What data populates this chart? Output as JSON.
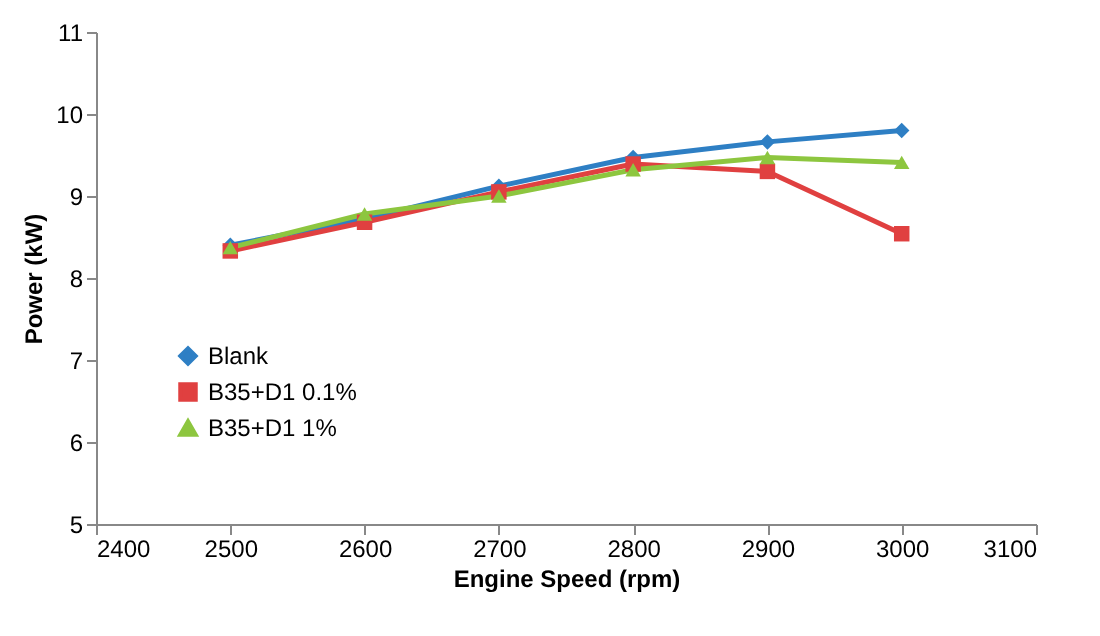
{
  "chart_data": {
    "type": "line",
    "xlabel": "Engine Speed (rpm)",
    "ylabel": "Power (kW)",
    "x": [
      2500,
      2600,
      2700,
      2800,
      2900,
      3000
    ],
    "xlim": [
      2400,
      3100
    ],
    "xticks": [
      2400,
      2500,
      2600,
      2700,
      2800,
      2900,
      3000,
      3100
    ],
    "ylim": [
      5,
      11
    ],
    "yticks": [
      5,
      6,
      7,
      8,
      9,
      10,
      11
    ],
    "legend": "bottom left",
    "grid": false,
    "series": [
      {
        "name": "Blank",
        "color": "#2e7fc4",
        "marker": "diamond",
        "values": [
          8.4,
          8.72,
          9.12,
          9.47,
          9.66,
          9.8
        ]
      },
      {
        "name": "B35+D1 0.1%",
        "color": "#e04040",
        "marker": "square",
        "values": [
          8.33,
          8.68,
          9.05,
          9.39,
          9.3,
          8.54
        ]
      },
      {
        "name": "B35+D1 1%",
        "color": "#8dc63f",
        "marker": "triangle",
        "values": [
          8.37,
          8.78,
          9.0,
          9.32,
          9.47,
          9.41
        ]
      }
    ]
  }
}
